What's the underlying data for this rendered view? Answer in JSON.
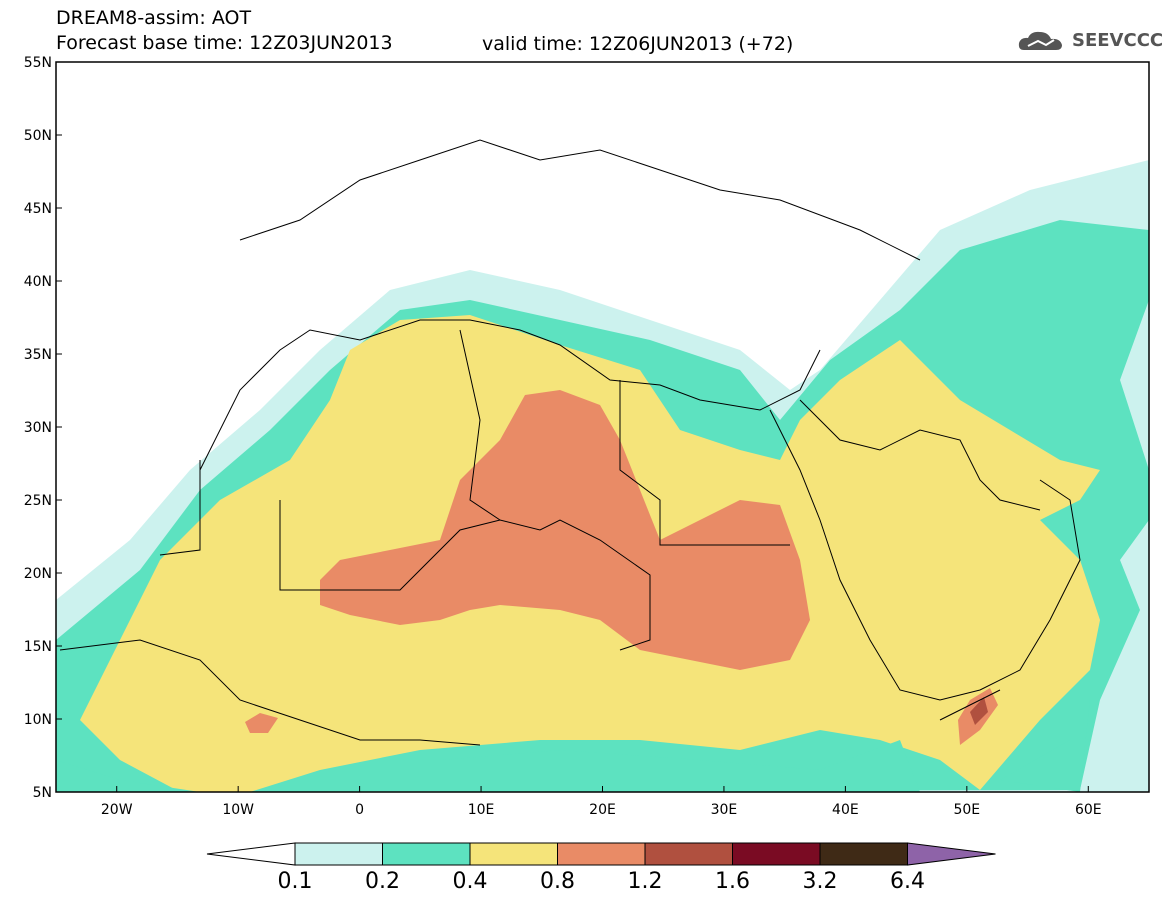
{
  "header": {
    "title": "DREAM8-assim: AOT",
    "base_time": "Forecast base time: 12Z03JUN2013",
    "valid_time": "valid time: 12Z06JUN2013 (+72)",
    "logo_text": "SEEVCCC"
  },
  "map": {
    "lon_range": [
      -25,
      65
    ],
    "lat_range": [
      5,
      55
    ],
    "lat_ticks": [
      "5N",
      "10N",
      "15N",
      "20N",
      "25N",
      "30N",
      "35N",
      "40N",
      "45N",
      "50N",
      "55N"
    ],
    "lon_ticks": [
      "20W",
      "10W",
      "0",
      "10E",
      "20E",
      "30E",
      "40E",
      "50E",
      "60E"
    ]
  },
  "colorbar": {
    "labels": [
      "0.1",
      "0.2",
      "0.4",
      "0.8",
      "1.2",
      "1.6",
      "3.2",
      "6.4"
    ],
    "colors": [
      "#ffffff",
      "#ccf2ee",
      "#5de2c0",
      "#f5e47a",
      "#e98b66",
      "#b0503f",
      "#7a0b23",
      "#3f2a16",
      "#8e63a8"
    ]
  }
}
